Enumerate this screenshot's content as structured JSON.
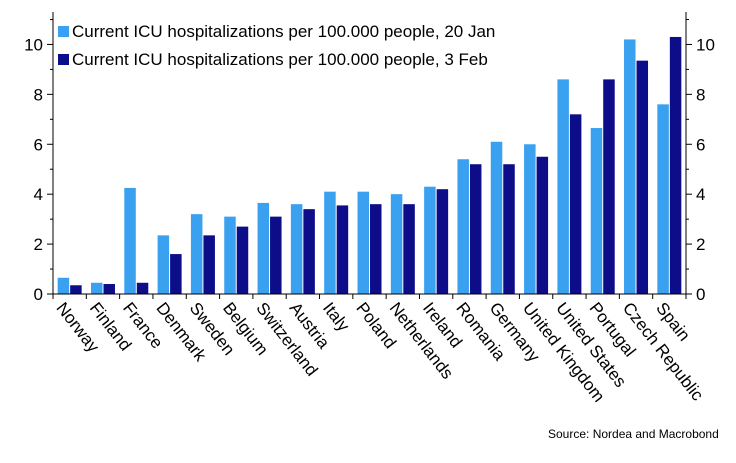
{
  "chart_data": {
    "type": "bar",
    "categories": [
      "Norway",
      "Finland",
      "France",
      "Denmark",
      "Sweden",
      "Belgium",
      "Switzerland",
      "Austria",
      "Italy",
      "Poland",
      "Netherlands",
      "Ireland",
      "Romania",
      "Germany",
      "United Kingdom",
      "United States",
      "Portugal",
      "Czech Republic",
      "Spain"
    ],
    "series": [
      {
        "name": "Current ICU hospitalizations per 100.000 people, 20 Jan",
        "color": "#3aa0f0",
        "values": [
          0.65,
          0.45,
          4.25,
          2.35,
          3.2,
          3.1,
          3.65,
          3.6,
          4.1,
          4.1,
          4.0,
          4.3,
          5.4,
          6.1,
          6.0,
          8.6,
          6.65,
          10.2,
          7.6
        ]
      },
      {
        "name": "Current ICU hospitalizations per 100.000 people, 3 Feb",
        "color": "#0d0d8a",
        "values": [
          0.35,
          0.4,
          0.45,
          1.6,
          2.35,
          2.7,
          3.1,
          3.4,
          3.55,
          3.6,
          3.6,
          4.2,
          5.2,
          5.2,
          5.5,
          7.2,
          8.6,
          9.35,
          10.3
        ]
      }
    ],
    "y_ticks": [
      "0",
      "2",
      "4",
      "6",
      "8",
      "10"
    ],
    "ylim": [
      0,
      11.3
    ],
    "legend": "top-left",
    "grid": false,
    "source": "Source: Nordea and Macrobond"
  }
}
